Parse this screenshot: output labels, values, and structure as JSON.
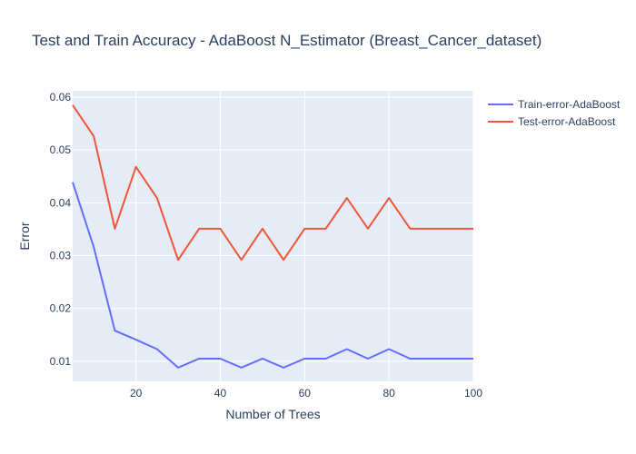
{
  "chart_data": {
    "type": "line",
    "title": "Test and Train Accuracy - AdaBoost N_Estimator (Breast_Cancer_dataset)",
    "xlabel": "Number of Trees",
    "ylabel": "Error",
    "xlim": [
      5,
      100
    ],
    "ylim": [
      0.0062,
      0.0612
    ],
    "x_ticks": [
      20,
      40,
      60,
      80,
      100
    ],
    "y_ticks": [
      0.01,
      0.02,
      0.03,
      0.04,
      0.05,
      0.06
    ],
    "x_tick_labels": [
      "20",
      "40",
      "60",
      "80",
      "100"
    ],
    "y_tick_labels": [
      "0.01",
      "0.02",
      "0.03",
      "0.04",
      "0.05",
      "0.06"
    ],
    "grid": true,
    "legend_position": "top-right, outside plot",
    "plot_background": "#e5ecf6",
    "x": [
      5,
      10,
      15,
      20,
      25,
      30,
      35,
      40,
      45,
      50,
      55,
      60,
      65,
      70,
      75,
      80,
      85,
      90,
      95,
      100
    ],
    "series": [
      {
        "name": "Train-error-AdaBoost",
        "color": "#636efa",
        "values": [
          0.0439,
          0.0316,
          0.0158,
          0.0141,
          0.0123,
          0.0088,
          0.0105,
          0.0105,
          0.0088,
          0.0105,
          0.0088,
          0.0105,
          0.0105,
          0.0123,
          0.0105,
          0.0123,
          0.0105,
          0.0105,
          0.0105,
          0.0105
        ]
      },
      {
        "name": "Test-error-AdaBoost",
        "color": "#ef553b",
        "values": [
          0.0585,
          0.0526,
          0.0351,
          0.0468,
          0.0409,
          0.0292,
          0.0351,
          0.0351,
          0.0292,
          0.0351,
          0.0292,
          0.0351,
          0.0351,
          0.0409,
          0.0351,
          0.0409,
          0.0351,
          0.0351,
          0.0351,
          0.0351
        ]
      }
    ]
  }
}
